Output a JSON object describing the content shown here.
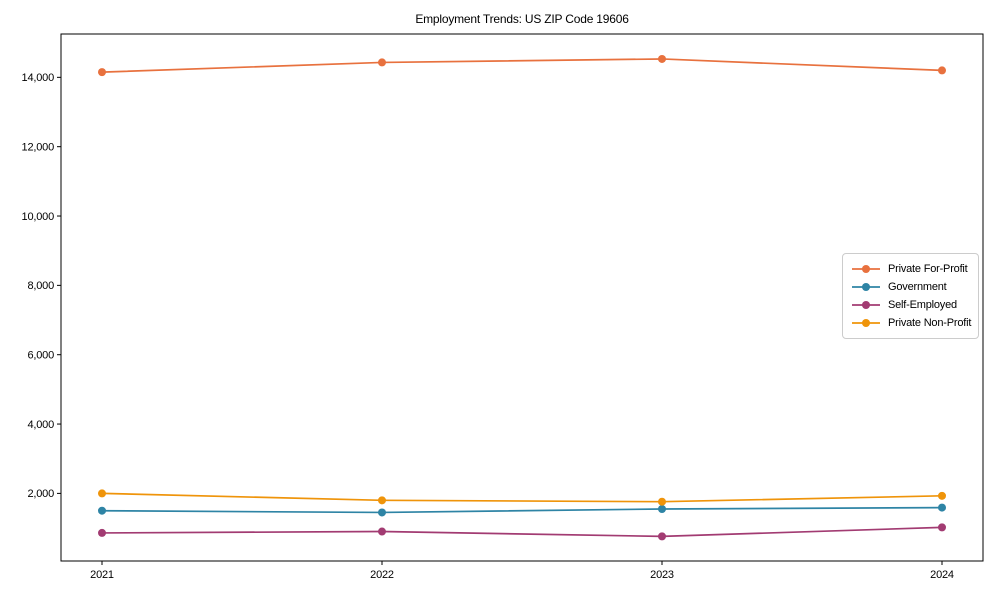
{
  "chart_data": {
    "type": "line",
    "title": "Employment Trends: US ZIP Code 19606",
    "categories": [
      "2021",
      "2022",
      "2023",
      "2024"
    ],
    "series": [
      {
        "name": "Private For-Profit",
        "color": "#e8713e",
        "values": [
          14150,
          14430,
          14530,
          14200
        ]
      },
      {
        "name": "Government",
        "color": "#2e84a5",
        "values": [
          1500,
          1450,
          1550,
          1590
        ]
      },
      {
        "name": "Self-Employed",
        "color": "#a23b72",
        "values": [
          860,
          900,
          760,
          1020
        ]
      },
      {
        "name": "Private Non-Profit",
        "color": "#ef940a",
        "values": [
          2000,
          1800,
          1760,
          1930
        ]
      }
    ],
    "xlabel": "",
    "ylabel": "",
    "ylim": [
      50,
      15250
    ],
    "yticks": [
      2000,
      4000,
      6000,
      8000,
      10000,
      12000,
      14000
    ],
    "ytick_labels": [
      "2,000",
      "4,000",
      "6,000",
      "8,000",
      "10,000",
      "12,000",
      "14,000"
    ],
    "grid": false,
    "legend_position": "center-right",
    "marker": "circle",
    "axis_color": "#000000"
  }
}
